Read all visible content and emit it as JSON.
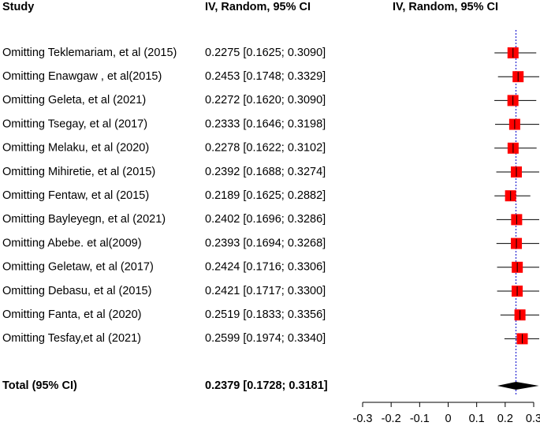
{
  "chart_data": {
    "type": "forest",
    "columns": [
      "Study",
      "IV, Random, 95% CI",
      "IV, Random, 95% CI"
    ],
    "categories": [
      "Omitting Teklemariam, et al (2015)",
      "Omitting Enawgaw , et al(2015)",
      "Omitting Geleta, et al (2021)",
      "Omitting Tsegay, et al (2017)",
      "Omitting Melaku, et al (2020)",
      "Omitting Mihiretie, et al (2015)",
      "Omitting Fentaw, et al (2015)",
      "Omitting Bayleyegn, et al (2021)",
      "Omitting Abebe. et al(2009)",
      "Omitting Geletaw, et al (2017)",
      "Omitting Debasu, et al (2015)",
      "Omitting Fanta, et al (2020)",
      "Omitting Tesfay,et al (2021)"
    ],
    "values": [
      0.2275,
      0.2453,
      0.2272,
      0.2333,
      0.2278,
      0.2392,
      0.2189,
      0.2402,
      0.2393,
      0.2424,
      0.2421,
      0.2519,
      0.2599
    ],
    "lower": [
      0.1625,
      0.1748,
      0.162,
      0.1646,
      0.1622,
      0.1688,
      0.1625,
      0.1696,
      0.1694,
      0.1716,
      0.1717,
      0.1833,
      0.1974
    ],
    "upper": [
      0.309,
      0.3329,
      0.309,
      0.3198,
      0.3102,
      0.3274,
      0.2882,
      0.3286,
      0.3268,
      0.3306,
      0.33,
      0.3356,
      0.334
    ],
    "value_labels": [
      "0.2275 [0.1625; 0.3090]",
      "0.2453 [0.1748; 0.3329]",
      "0.2272 [0.1620; 0.3090]",
      "0.2333 [0.1646; 0.3198]",
      "0.2278 [0.1622; 0.3102]",
      "0.2392 [0.1688; 0.3274]",
      "0.2189 [0.1625; 0.2882]",
      "0.2402 [0.1696; 0.3286]",
      "0.2393 [0.1694; 0.3268]",
      "0.2424 [0.1716; 0.3306]",
      "0.2421 [0.1717; 0.3300]",
      "0.2519 [0.1833; 0.3356]",
      "0.2599 [0.1974; 0.3340]"
    ],
    "total": {
      "label": "Total (95% CI)",
      "value": 0.2379,
      "lower": 0.1728,
      "upper": 0.3181,
      "value_label": "0.2379 [0.1728; 0.3181]"
    },
    "color": "#ff0000",
    "reference_color": "#0000cc",
    "xlim": [
      -0.3,
      0.3
    ],
    "xticks": [
      -0.3,
      -0.2,
      -0.1,
      0,
      0.1,
      0.2,
      0.3
    ]
  }
}
